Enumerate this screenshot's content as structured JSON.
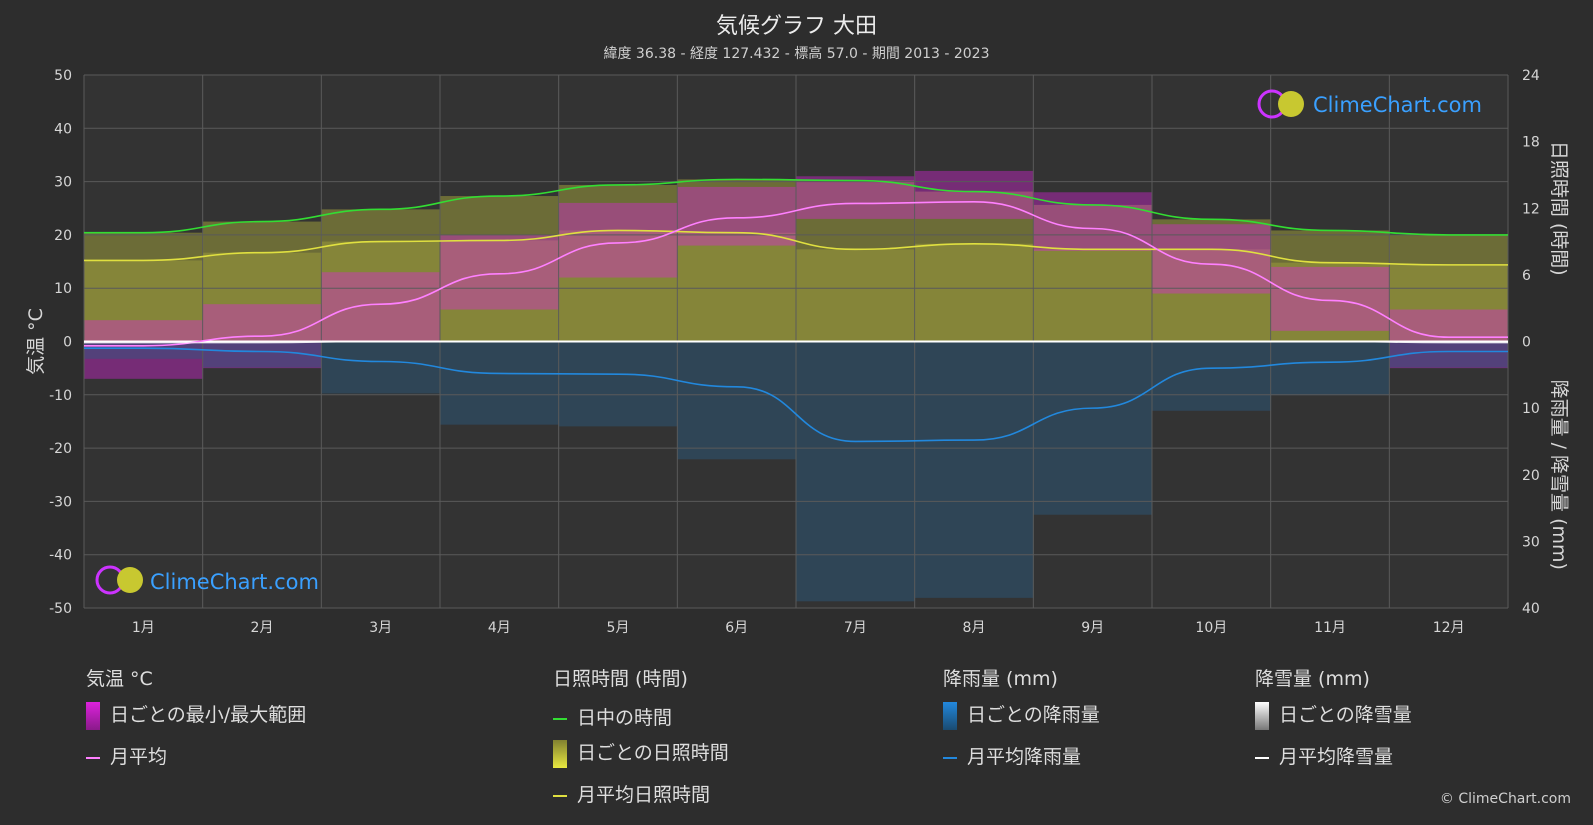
{
  "title": "気候グラフ 大田",
  "subtitle": "緯度 36.38 - 経度 127.432 - 標高 57.0 - 期間 2013 - 2023",
  "watermark": "ClimeChart.com",
  "copyright": "© ClimeChart.com",
  "colors": {
    "background": "#2d2d2d",
    "daylight": "#33dd33",
    "sunshine_avg": "#e0e040",
    "temp_avg": "#ff80ff",
    "temp_range": "#dd22dd",
    "rain": "#2288dd",
    "snow": "#ffffff",
    "sunshine_band": "#9a9a3a",
    "rain_band": "#2a5a80"
  },
  "legend": {
    "temperature": {
      "heading": "気温 °C",
      "range_label": "日ごとの最小/最大範囲",
      "avg_label": "月平均"
    },
    "sunshine": {
      "heading": "日照時間 (時間)",
      "daylight_label": "日中の時間",
      "daily_label": "日ごとの日照時間",
      "avg_label": "月平均日照時間"
    },
    "rain": {
      "heading": "降雨量 (mm)",
      "daily_label": "日ごとの降雨量",
      "avg_label": "月平均降雨量"
    },
    "snow": {
      "heading": "降雪量 (mm)",
      "daily_label": "日ごとの降雪量",
      "avg_label": "月平均降雪量"
    }
  },
  "chart_data": {
    "type": "line",
    "categories": [
      "1月",
      "2月",
      "3月",
      "4月",
      "5月",
      "6月",
      "7月",
      "8月",
      "9月",
      "10月",
      "11月",
      "12月"
    ],
    "y_left": {
      "label": "気温 °C",
      "ylim": [
        -50,
        50
      ],
      "ticks": [
        50,
        40,
        30,
        20,
        10,
        0,
        -10,
        -20,
        -30,
        -40,
        -50
      ]
    },
    "y_right_top": {
      "label": "日照時間 (時間)",
      "ylim": [
        0,
        24
      ],
      "ticks": [
        24,
        18,
        12,
        6,
        0
      ]
    },
    "y_right_bottom": {
      "label": "降雨量 / 降雪量 (mm)",
      "ylim": [
        0,
        40
      ],
      "ticks": [
        10,
        20,
        30,
        40
      ]
    },
    "series": [
      {
        "name": "日中の時間",
        "axis": "sunshine",
        "values": [
          9.8,
          10.8,
          11.9,
          13.1,
          14.1,
          14.6,
          14.5,
          13.5,
          12.3,
          11.0,
          10.0,
          9.6
        ]
      },
      {
        "name": "月平均日照時間",
        "axis": "sunshine",
        "values": [
          7.3,
          8.0,
          9.0,
          9.1,
          10.0,
          9.8,
          8.3,
          8.8,
          8.3,
          8.3,
          7.1,
          6.9
        ]
      },
      {
        "name": "月平均",
        "axis": "temperature",
        "values": [
          -0.8,
          1.0,
          7.0,
          12.7,
          18.5,
          23.2,
          25.9,
          26.2,
          21.2,
          14.5,
          7.7,
          0.8
        ]
      },
      {
        "name": "月平均降雨量",
        "axis": "precipitation",
        "values": [
          1.0,
          1.5,
          3.0,
          4.8,
          4.9,
          6.8,
          15.0,
          14.8,
          10.0,
          4.0,
          3.1,
          1.5
        ]
      },
      {
        "name": "月平均降雪量",
        "axis": "precipitation",
        "values": [
          0.2,
          0.2,
          0.0,
          0.0,
          0.0,
          0.0,
          0.0,
          0.0,
          0.0,
          0.0,
          0.0,
          0.2
        ]
      }
    ],
    "temperature_range": {
      "min": [
        -7,
        -5,
        0,
        6,
        12,
        18,
        23,
        23,
        17,
        9,
        2,
        -5
      ],
      "max": [
        4,
        7,
        13,
        20,
        26,
        29,
        31,
        32,
        28,
        22,
        14,
        6
      ]
    },
    "grid": true
  }
}
